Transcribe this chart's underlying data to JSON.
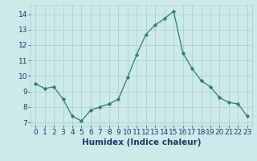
{
  "xlabel": "Humidex (Indice chaleur)",
  "x": [
    0,
    1,
    2,
    3,
    4,
    5,
    6,
    7,
    8,
    9,
    10,
    11,
    12,
    13,
    14,
    15,
    16,
    17,
    18,
    19,
    20,
    21,
    22,
    23
  ],
  "y": [
    9.5,
    9.2,
    9.3,
    8.5,
    7.4,
    7.1,
    7.8,
    8.0,
    8.2,
    8.5,
    9.9,
    11.4,
    12.7,
    13.3,
    13.7,
    14.2,
    11.5,
    10.5,
    9.7,
    9.3,
    8.6,
    8.3,
    8.2,
    7.4
  ],
  "line_color": "#2d7d6d",
  "marker": "D",
  "marker_size": 2.2,
  "bg_color": "#cceaea",
  "grid_color": "#aacccc",
  "ylim": [
    6.8,
    14.6
  ],
  "yticks": [
    7,
    8,
    9,
    10,
    11,
    12,
    13,
    14
  ],
  "xlim": [
    -0.5,
    23.5
  ],
  "xticks": [
    0,
    1,
    2,
    3,
    4,
    5,
    6,
    7,
    8,
    9,
    10,
    11,
    12,
    13,
    14,
    15,
    16,
    17,
    18,
    19,
    20,
    21,
    22,
    23
  ],
  "tick_label_fontsize": 6.5,
  "xlabel_fontsize": 7.5,
  "label_color": "#1a3a6e"
}
